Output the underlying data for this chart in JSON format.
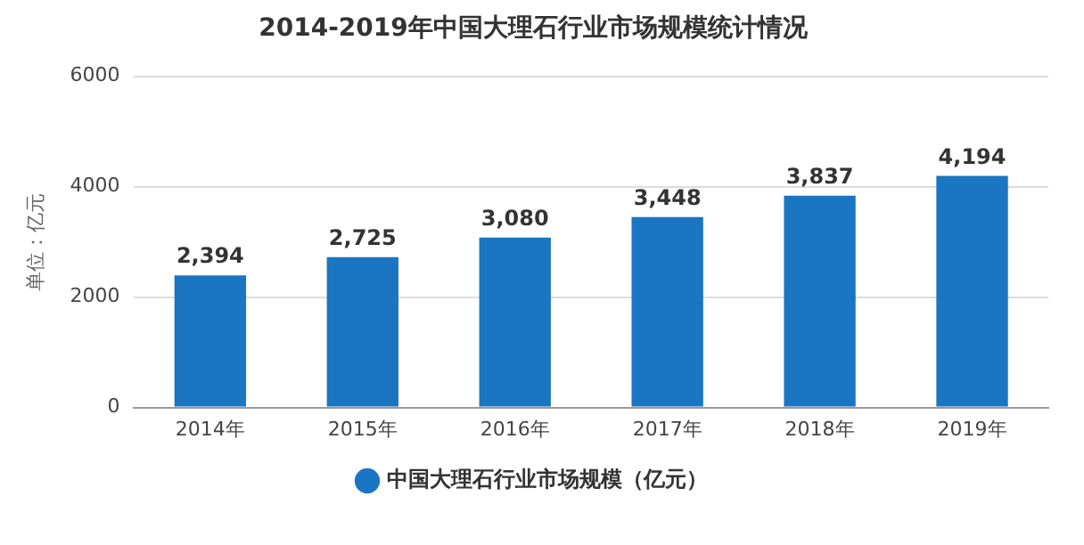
{
  "chart_data": {
    "type": "bar",
    "title": "2014-2019年中国大理石行业市场规模统计情况",
    "ylabel": "单位：亿元",
    "categories": [
      "2014年",
      "2015年",
      "2016年",
      "2017年",
      "2018年",
      "2019年"
    ],
    "series": [
      {
        "name": "中国大理石行业市场规模（亿元）",
        "color": "#1a75c2",
        "values": [
          2394,
          2725,
          3080,
          3448,
          3837,
          4194
        ]
      }
    ],
    "value_labels": [
      "2,394",
      "2,725",
      "3,080",
      "3,448",
      "3,837",
      "4,194"
    ],
    "ylim": [
      0,
      6000
    ],
    "yticks": [
      0,
      2000,
      4000,
      6000
    ],
    "grid": "y",
    "legend": "bottom"
  }
}
